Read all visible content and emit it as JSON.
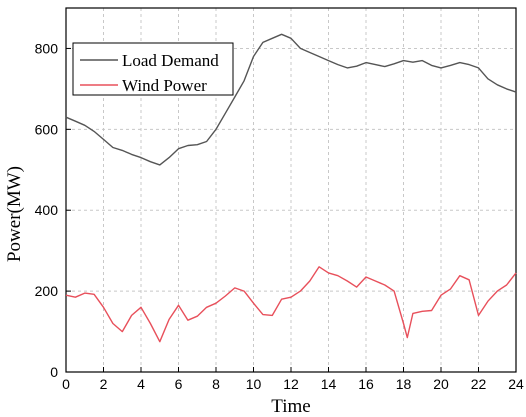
{
  "chart_data": {
    "type": "line",
    "title": "",
    "xlabel": "Time",
    "ylabel": "Power(MW)",
    "xlim": [
      0,
      24
    ],
    "ylim": [
      0,
      900
    ],
    "xticks": [
      0,
      2,
      4,
      6,
      8,
      10,
      12,
      14,
      16,
      18,
      20,
      22,
      24
    ],
    "yticks": [
      0,
      200,
      400,
      600,
      800
    ],
    "grid": true,
    "legend_position": "top-left",
    "series": [
      {
        "name": "Load Demand",
        "color": "#555555",
        "points": [
          [
            0,
            630
          ],
          [
            0.5,
            620
          ],
          [
            1.0,
            610
          ],
          [
            1.5,
            595
          ],
          [
            2.0,
            575
          ],
          [
            2.5,
            555
          ],
          [
            3.0,
            548
          ],
          [
            3.5,
            538
          ],
          [
            4.0,
            530
          ],
          [
            4.5,
            520
          ],
          [
            5.0,
            512
          ],
          [
            5.5,
            530
          ],
          [
            6.0,
            552
          ],
          [
            6.5,
            560
          ],
          [
            7.0,
            562
          ],
          [
            7.5,
            570
          ],
          [
            8.0,
            600
          ],
          [
            8.5,
            640
          ],
          [
            9.0,
            680
          ],
          [
            9.5,
            720
          ],
          [
            10.0,
            780
          ],
          [
            10.5,
            815
          ],
          [
            11.0,
            825
          ],
          [
            11.5,
            835
          ],
          [
            12.0,
            825
          ],
          [
            12.5,
            800
          ],
          [
            13.0,
            790
          ],
          [
            13.5,
            780
          ],
          [
            14.0,
            770
          ],
          [
            14.5,
            760
          ],
          [
            15.0,
            752
          ],
          [
            15.5,
            756
          ],
          [
            16.0,
            765
          ],
          [
            16.5,
            760
          ],
          [
            17.0,
            755
          ],
          [
            17.5,
            762
          ],
          [
            18.0,
            770
          ],
          [
            18.5,
            766
          ],
          [
            19.0,
            770
          ],
          [
            19.5,
            758
          ],
          [
            20.0,
            752
          ],
          [
            20.5,
            758
          ],
          [
            21.0,
            765
          ],
          [
            21.5,
            760
          ],
          [
            22.0,
            752
          ],
          [
            22.5,
            725
          ],
          [
            23.0,
            710
          ],
          [
            23.5,
            700
          ],
          [
            24.0,
            692
          ]
        ]
      },
      {
        "name": "Wind Power",
        "color": "#e8505b",
        "points": [
          [
            0,
            190
          ],
          [
            0.5,
            185
          ],
          [
            1.0,
            195
          ],
          [
            1.5,
            192
          ],
          [
            2.0,
            160
          ],
          [
            2.5,
            120
          ],
          [
            3.0,
            100
          ],
          [
            3.5,
            140
          ],
          [
            4.0,
            160
          ],
          [
            4.5,
            120
          ],
          [
            5.0,
            75
          ],
          [
            5.5,
            130
          ],
          [
            6.0,
            165
          ],
          [
            6.5,
            128
          ],
          [
            7.0,
            138
          ],
          [
            7.5,
            160
          ],
          [
            8.0,
            170
          ],
          [
            8.5,
            188
          ],
          [
            9.0,
            208
          ],
          [
            9.5,
            200
          ],
          [
            10.0,
            170
          ],
          [
            10.5,
            142
          ],
          [
            11.0,
            140
          ],
          [
            11.5,
            180
          ],
          [
            12.0,
            185
          ],
          [
            12.5,
            200
          ],
          [
            13.0,
            225
          ],
          [
            13.5,
            260
          ],
          [
            14.0,
            245
          ],
          [
            14.5,
            238
          ],
          [
            15.0,
            225
          ],
          [
            15.5,
            210
          ],
          [
            16.0,
            235
          ],
          [
            16.5,
            225
          ],
          [
            17.0,
            215
          ],
          [
            17.5,
            200
          ],
          [
            18.0,
            120
          ],
          [
            18.2,
            85
          ],
          [
            18.5,
            145
          ],
          [
            19.0,
            150
          ],
          [
            19.5,
            152
          ],
          [
            20.0,
            190
          ],
          [
            20.5,
            205
          ],
          [
            21.0,
            238
          ],
          [
            21.5,
            228
          ],
          [
            22.0,
            140
          ],
          [
            22.5,
            175
          ],
          [
            23.0,
            200
          ],
          [
            23.5,
            215
          ],
          [
            24.0,
            245
          ]
        ]
      }
    ]
  }
}
